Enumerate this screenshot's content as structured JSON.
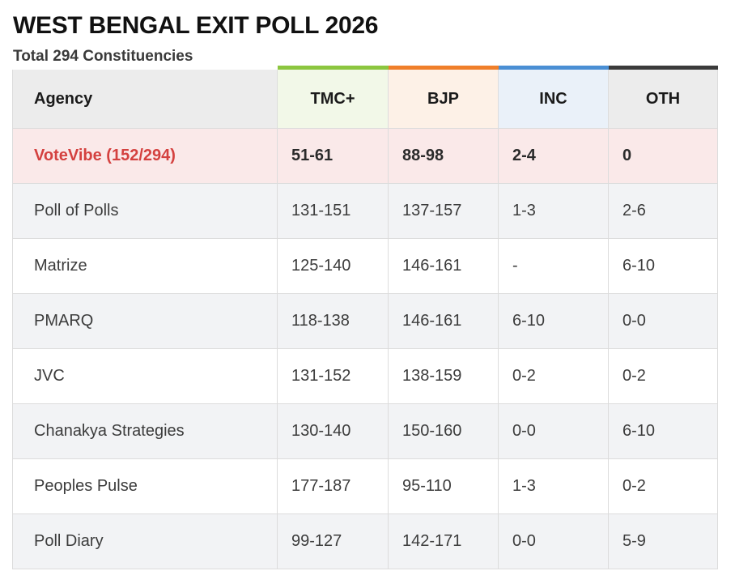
{
  "title": "WEST BENGAL EXIT POLL 2026",
  "subtitle": "Total 294 Constituencies",
  "table": {
    "agency_header": "Agency",
    "parties": [
      {
        "label": "TMC+",
        "accent": "#8cc63f",
        "bg": "#f2f8e8"
      },
      {
        "label": "BJP",
        "accent": "#f07f2a",
        "bg": "#fdf1e7"
      },
      {
        "label": "INC",
        "accent": "#4a8fd4",
        "bg": "#eaf1f9"
      },
      {
        "label": "OTH",
        "accent": "#3b3b3b",
        "bg": "#ececec"
      }
    ],
    "highlight_color": "#d4413f",
    "rows": [
      {
        "agency": "VoteVibe (152/294)",
        "values": [
          "51-61",
          "88-98",
          "2-4",
          "0"
        ],
        "highlight": true
      },
      {
        "agency": "Poll of Polls",
        "values": [
          "131-151",
          "137-157",
          "1-3",
          "2-6"
        ]
      },
      {
        "agency": "Matrize",
        "values": [
          "125-140",
          "146-161",
          "-",
          "6-10"
        ]
      },
      {
        "agency": "PMARQ",
        "values": [
          "118-138",
          "146-161",
          "6-10",
          "0-0"
        ]
      },
      {
        "agency": "JVC",
        "values": [
          "131-152",
          "138-159",
          "0-2",
          "0-2"
        ]
      },
      {
        "agency": "Chanakya Strategies",
        "values": [
          "130-140",
          "150-160",
          "0-0",
          "6-10"
        ]
      },
      {
        "agency": "Peoples Pulse",
        "values": [
          "177-187",
          "95-110",
          "1-3",
          "0-2"
        ]
      },
      {
        "agency": "Poll Diary",
        "values": [
          "99-127",
          "142-171",
          "0-0",
          "5-9"
        ]
      }
    ]
  }
}
